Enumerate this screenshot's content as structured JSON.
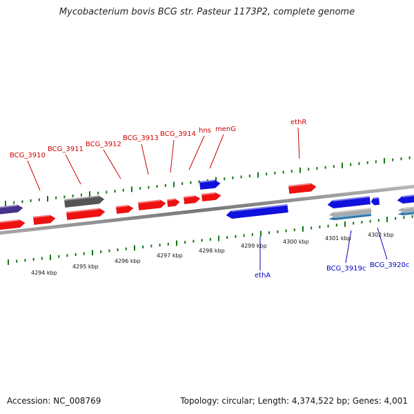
{
  "title": "Mycobacterium bovis BCG str. Pasteur 1173P2, complete genome",
  "footer": {
    "accession": "Accession: NC_008769",
    "summary": "Topology: circular; Length: 4,374,522 bp; Genes: 4,001"
  },
  "colors": {
    "forward_gene": "#ee1111",
    "reverse_gene": "#1111dd",
    "pseudo_gene": "#555555",
    "rna_gene": "#443388",
    "tick": "#117711",
    "backbone": "#888888",
    "forward_label": "#cc0000",
    "reverse_label": "#0000bb"
  },
  "scale": {
    "unit": "kbp",
    "labels": [
      "4294 kbp",
      "4295 kbp",
      "4296 kbp",
      "4297 kbp",
      "4298 kbp",
      "4299 kbp",
      "4300 kbp",
      "4301 kbp",
      "4302 kbp"
    ]
  },
  "forward_labels": [
    "BCG_3910",
    "BCG_3911",
    "BCG_3912",
    "BCG_3913",
    "BCG_3914",
    "hns",
    "menG",
    "ethR"
  ],
  "reverse_labels": [
    "ethA",
    "BCG_3919c",
    "BCG_3920c"
  ]
}
